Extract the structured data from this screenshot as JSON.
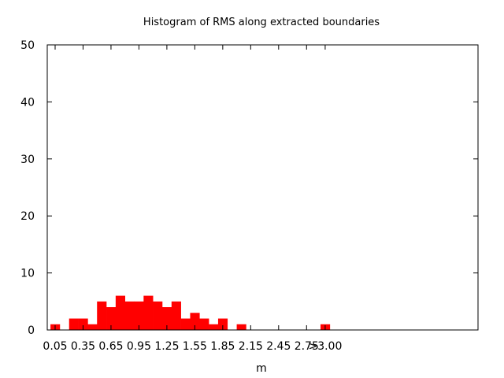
{
  "chart_data": {
    "type": "bar",
    "title": "Histogram of RMS along extracted boundaries",
    "xlabel": "m",
    "ylabel": "",
    "ylim": [
      0,
      50
    ],
    "y_ticks": [
      "0",
      "10",
      "20",
      "30",
      "40",
      "50"
    ],
    "x_ticks": [
      "0.05",
      "0.35",
      "0.65",
      "0.95",
      "1.25",
      "1.55",
      "1.85",
      "2.15",
      "2.45",
      "2.75",
      ">3.00"
    ],
    "categories": [
      "0.05",
      "0.15",
      "0.25",
      "0.35",
      "0.45",
      "0.55",
      "0.65",
      "0.75",
      "0.85",
      "0.95",
      "1.05",
      "1.15",
      "1.25",
      "1.35",
      "1.45",
      "1.55",
      "1.65",
      "1.75",
      "1.85",
      "1.95",
      "2.05",
      "2.15",
      "2.25",
      "2.35",
      "2.45",
      "2.55",
      "2.65",
      "2.75",
      "2.85",
      ">3.00"
    ],
    "values": [
      1,
      0,
      2,
      2,
      1,
      5,
      4,
      6,
      5,
      5,
      6,
      5,
      4,
      5,
      2,
      3,
      2,
      1,
      2,
      0,
      1,
      0,
      0,
      0,
      0,
      0,
      0,
      0,
      0,
      1
    ],
    "bar_color": "#ff0000",
    "grid": false
  }
}
